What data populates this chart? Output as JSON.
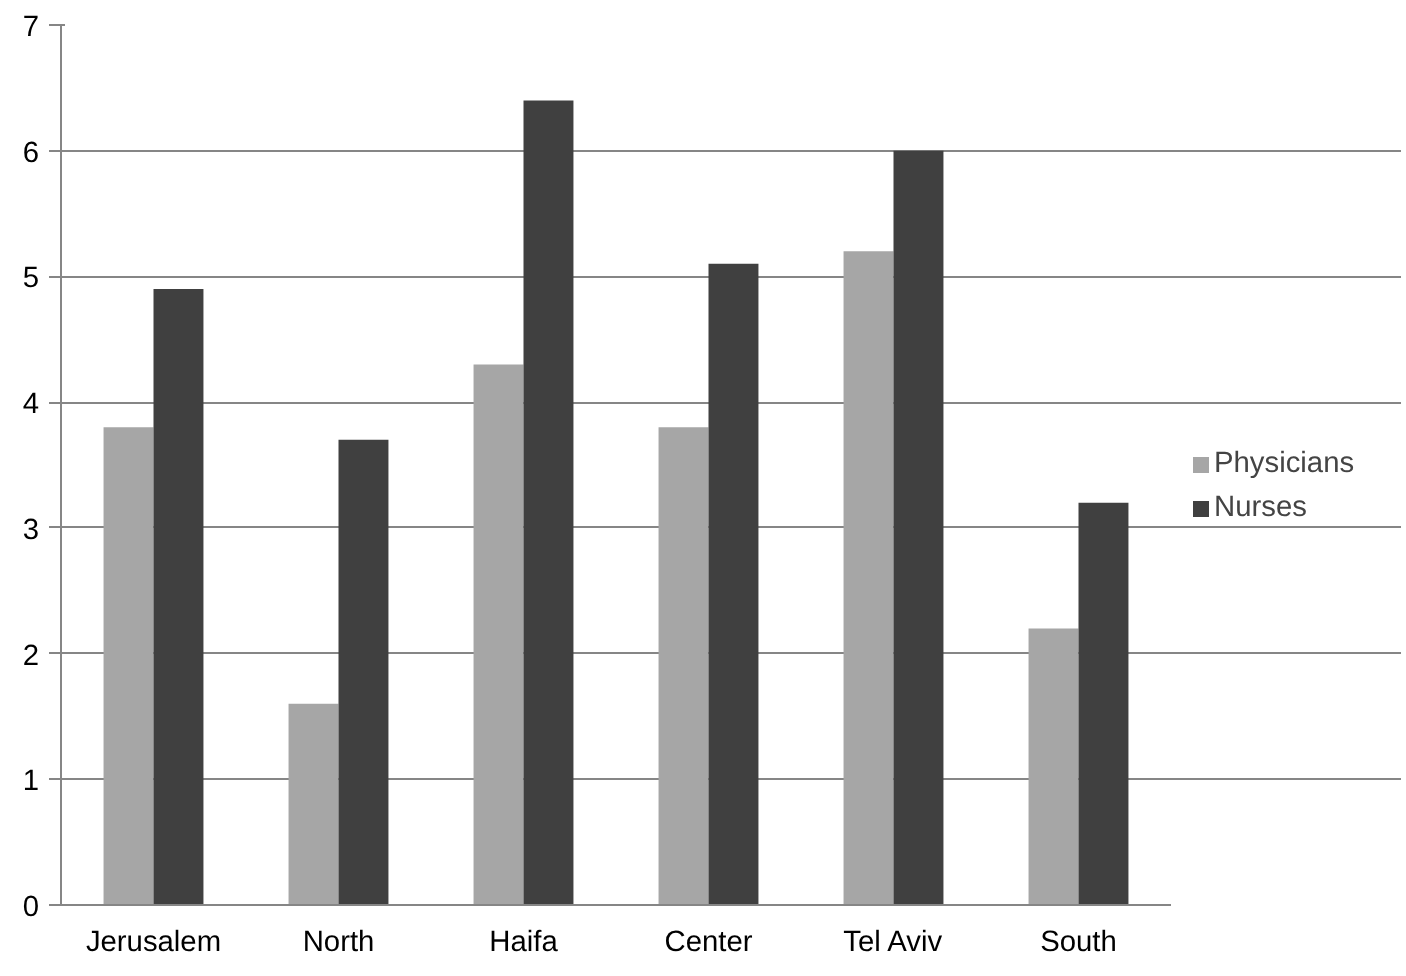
{
  "chart_data": {
    "type": "bar",
    "categories": [
      "Jerusalem",
      "North",
      "Haifa",
      "Center",
      "Tel Aviv",
      "South"
    ],
    "series": [
      {
        "name": "Physicians",
        "color": "#a6a6a6",
        "values": [
          3.8,
          1.6,
          4.3,
          3.8,
          5.2,
          2.2
        ]
      },
      {
        "name": "Nurses",
        "color": "#404040",
        "values": [
          4.9,
          3.7,
          6.4,
          5.1,
          6.0,
          3.2
        ]
      }
    ],
    "ylim": [
      0,
      7
    ],
    "yticks": [
      0,
      1,
      2,
      3,
      4,
      5,
      6,
      7
    ],
    "grid": "y",
    "legend": "right"
  }
}
